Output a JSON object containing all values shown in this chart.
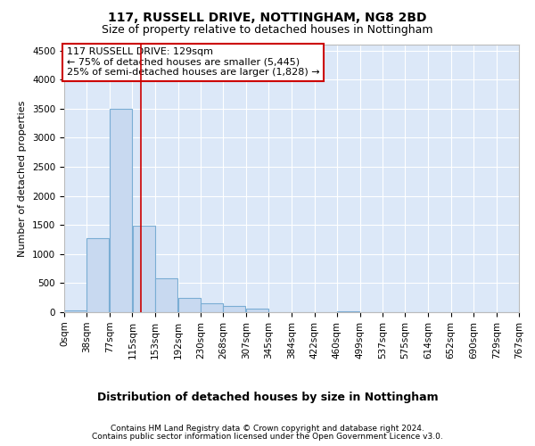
{
  "title1": "117, RUSSELL DRIVE, NOTTINGHAM, NG8 2BD",
  "title2": "Size of property relative to detached houses in Nottingham",
  "xlabel": "Distribution of detached houses by size in Nottingham",
  "ylabel": "Number of detached properties",
  "footer1": "Contains HM Land Registry data © Crown copyright and database right 2024.",
  "footer2": "Contains public sector information licensed under the Open Government Licence v3.0.",
  "annotation_line1": "117 RUSSELL DRIVE: 129sqm",
  "annotation_line2": "← 75% of detached houses are smaller (5,445)",
  "annotation_line3": "25% of semi-detached houses are larger (1,828) →",
  "bar_color": "#c8d9f0",
  "bar_edge_color": "#7aadd4",
  "red_line_x": 129,
  "categories": [
    "0sqm",
    "38sqm",
    "77sqm",
    "115sqm",
    "153sqm",
    "192sqm",
    "230sqm",
    "268sqm",
    "307sqm",
    "345sqm",
    "384sqm",
    "422sqm",
    "460sqm",
    "499sqm",
    "537sqm",
    "575sqm",
    "614sqm",
    "652sqm",
    "690sqm",
    "729sqm",
    "767sqm"
  ],
  "bin_edges": [
    0,
    38,
    77,
    115,
    153,
    192,
    230,
    268,
    307,
    345,
    384,
    422,
    460,
    499,
    537,
    575,
    614,
    652,
    690,
    729,
    767
  ],
  "values": [
    25,
    1280,
    3500,
    1480,
    580,
    240,
    150,
    100,
    60,
    0,
    0,
    0,
    20,
    0,
    0,
    0,
    0,
    0,
    0,
    0
  ],
  "ylim": [
    0,
    4600
  ],
  "yticks": [
    0,
    500,
    1000,
    1500,
    2000,
    2500,
    3000,
    3500,
    4000,
    4500
  ],
  "fig_bg_color": "#ffffff",
  "plot_bg_color": "#dce8f8",
  "grid_color": "#ffffff",
  "annotation_box_facecolor": "#ffffff",
  "annotation_box_edgecolor": "#cc0000",
  "red_line_color": "#cc0000",
  "title1_fontsize": 10,
  "title2_fontsize": 9,
  "ylabel_fontsize": 8,
  "xlabel_fontsize": 9,
  "tick_fontsize": 7.5,
  "footer_fontsize": 6.5,
  "annot_fontsize": 8
}
